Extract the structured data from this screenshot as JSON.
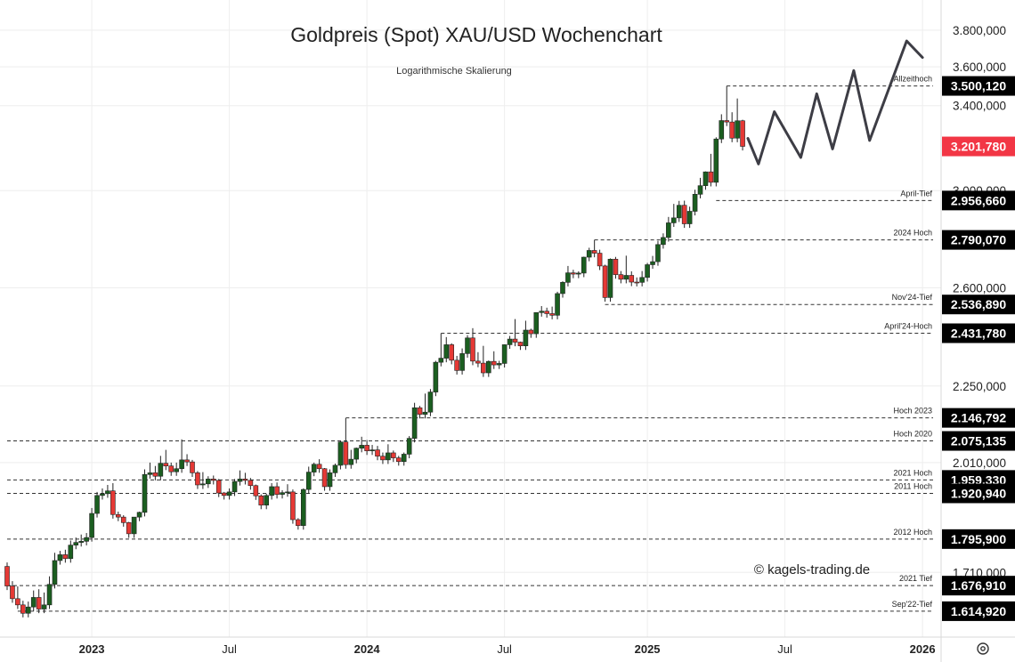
{
  "colors": {
    "up": "#1b5e20",
    "down": "#e53935",
    "badge_bg": "#000000",
    "last_bg": "#f23645",
    "grid": "#eeeeee",
    "projection": "#3d3d45"
  },
  "chart_data": {
    "type": "candlestick",
    "title": "Goldpreis (Spot) XAU/USD Wochenchart",
    "subtitle": "Logarithmische Skalierung",
    "scale": "log",
    "ylim": [
      1600,
      3900
    ],
    "x_start": "2022-09-12",
    "x_end": "2026-01-19",
    "y_ticks": [
      "3.800,000",
      "3.600,000",
      "3.400,000",
      "3.000,000",
      "2.600,000",
      "2.250,000",
      "2.010,000",
      "1.710,000"
    ],
    "x_ticks": [
      {
        "label": "2023",
        "date": "2023-01-02",
        "bold": true
      },
      {
        "label": "Jul",
        "date": "2023-07-03",
        "bold": false
      },
      {
        "label": "2024",
        "date": "2024-01-01",
        "bold": true
      },
      {
        "label": "Jul",
        "date": "2024-07-01",
        "bold": false
      },
      {
        "label": "2025",
        "date": "2025-01-06",
        "bold": true
      },
      {
        "label": "Jul",
        "date": "2025-07-07",
        "bold": false
      },
      {
        "label": "2026",
        "date": "2026-01-05",
        "bold": true
      }
    ],
    "levels": [
      {
        "name": "Allzeithoch",
        "value": 3500.12,
        "label": "3.500,120",
        "from": "2025-04-21"
      },
      {
        "name": "April-Tief",
        "value": 2956.66,
        "label": "2.956,660",
        "from": "2025-04-07"
      },
      {
        "name": "2024 Hoch",
        "value": 2790.07,
        "label": "2.790,070",
        "from": "2024-10-28"
      },
      {
        "name": "Nov'24-Tief",
        "value": 2536.89,
        "label": "2.536,890",
        "from": "2024-11-11"
      },
      {
        "name": "April'24-Hoch",
        "value": 2431.78,
        "label": "2.431,780",
        "from": "2024-04-08"
      },
      {
        "name": "Hoch 2023",
        "value": 2146.792,
        "label": "2.146,792",
        "from": "2023-12-04"
      },
      {
        "name": "Hoch 2020",
        "value": 2075.135,
        "label": "2.075,135",
        "from": "2022-09-12"
      },
      {
        "name": "2021 Hoch",
        "value": 1959.33,
        "label": "1.959,330",
        "from": "2022-09-12"
      },
      {
        "name": "2011 Hoch",
        "value": 1920.94,
        "label": "1.920,940",
        "from": "2022-09-12"
      },
      {
        "name": "2012 Hoch",
        "value": 1795.9,
        "label": "1.795,900",
        "from": "2022-09-12"
      },
      {
        "name": "2021 Tief",
        "value": 1676.91,
        "label": "1.676,910",
        "from": "2022-09-12"
      },
      {
        "name": "Sep'22-Tief",
        "value": 1614.92,
        "label": "1.614,920",
        "from": "2022-09-26"
      }
    ],
    "last_price": {
      "value": 3201.78,
      "label": "3.201,780"
    },
    "watermark": "© kagels-trading.de",
    "projection": [
      {
        "date": "2025-05-19",
        "value": 3240
      },
      {
        "date": "2025-06-02",
        "value": 3120
      },
      {
        "date": "2025-06-23",
        "value": 3370
      },
      {
        "date": "2025-07-28",
        "value": 3150
      },
      {
        "date": "2025-08-18",
        "value": 3460
      },
      {
        "date": "2025-09-08",
        "value": 3190
      },
      {
        "date": "2025-10-06",
        "value": 3580
      },
      {
        "date": "2025-10-27",
        "value": 3230
      },
      {
        "date": "2025-12-15",
        "value": 3740
      },
      {
        "date": "2026-01-05",
        "value": 3650
      }
    ],
    "candles": [
      {
        "d": "2022-09-12",
        "o": 1725,
        "h": 1735,
        "c": 1676
      },
      {
        "d": "2022-09-19",
        "o": 1676,
        "h": 1688,
        "c": 1645
      },
      {
        "d": "2022-09-26",
        "o": 1645,
        "h": 1675,
        "c": 1630
      },
      {
        "d": "2022-10-03",
        "o": 1630,
        "h": 1640,
        "c": 1610
      },
      {
        "d": "2022-10-10",
        "o": 1610,
        "h": 1638,
        "c": 1625
      },
      {
        "d": "2022-10-17",
        "o": 1625,
        "h": 1665,
        "c": 1648
      },
      {
        "d": "2022-10-24",
        "o": 1648,
        "h": 1668,
        "c": 1620
      },
      {
        "d": "2022-10-31",
        "o": 1620,
        "h": 1660,
        "c": 1630
      },
      {
        "d": "2022-11-07",
        "o": 1630,
        "h": 1700,
        "c": 1680
      },
      {
        "d": "2022-11-14",
        "o": 1680,
        "h": 1760,
        "c": 1740
      },
      {
        "d": "2022-11-21",
        "o": 1740,
        "h": 1765,
        "c": 1755
      },
      {
        "d": "2022-11-28",
        "o": 1755,
        "h": 1768,
        "c": 1745
      },
      {
        "d": "2022-12-05",
        "o": 1745,
        "h": 1792,
        "c": 1780
      },
      {
        "d": "2022-12-12",
        "o": 1780,
        "h": 1800,
        "c": 1787
      },
      {
        "d": "2022-12-19",
        "o": 1787,
        "h": 1808,
        "c": 1790
      },
      {
        "d": "2022-12-26",
        "o": 1790,
        "h": 1812,
        "c": 1800
      },
      {
        "d": "2023-01-02",
        "o": 1800,
        "h": 1880,
        "c": 1865
      },
      {
        "d": "2023-01-09",
        "o": 1865,
        "h": 1925,
        "c": 1915
      },
      {
        "d": "2023-01-16",
        "o": 1915,
        "h": 1935,
        "c": 1920
      },
      {
        "d": "2023-01-23",
        "o": 1920,
        "h": 1945,
        "c": 1928
      },
      {
        "d": "2023-01-30",
        "o": 1928,
        "h": 1950,
        "c": 1862
      },
      {
        "d": "2023-02-06",
        "o": 1862,
        "h": 1870,
        "c": 1855
      },
      {
        "d": "2023-02-13",
        "o": 1855,
        "h": 1860,
        "c": 1840
      },
      {
        "d": "2023-02-20",
        "o": 1840,
        "h": 1842,
        "c": 1810
      },
      {
        "d": "2023-02-27",
        "o": 1810,
        "h": 1855,
        "c": 1855
      },
      {
        "d": "2023-03-06",
        "o": 1855,
        "h": 1870,
        "c": 1868
      },
      {
        "d": "2023-03-13",
        "o": 1868,
        "h": 1990,
        "c": 1975
      },
      {
        "d": "2023-03-20",
        "o": 1975,
        "h": 2010,
        "c": 1980
      },
      {
        "d": "2023-03-27",
        "o": 1980,
        "h": 2000,
        "c": 1970
      },
      {
        "d": "2023-04-03",
        "o": 1970,
        "h": 2030,
        "c": 2008
      },
      {
        "d": "2023-04-10",
        "o": 2008,
        "h": 2048,
        "c": 2000
      },
      {
        "d": "2023-04-17",
        "o": 2000,
        "h": 2010,
        "c": 1983
      },
      {
        "d": "2023-04-24",
        "o": 1983,
        "h": 2010,
        "c": 1992
      },
      {
        "d": "2023-05-01",
        "o": 1992,
        "h": 2080,
        "c": 2018
      },
      {
        "d": "2023-05-08",
        "o": 2018,
        "h": 2035,
        "c": 2012
      },
      {
        "d": "2023-05-15",
        "o": 2012,
        "h": 2018,
        "c": 1980
      },
      {
        "d": "2023-05-22",
        "o": 1980,
        "h": 1985,
        "c": 1945
      },
      {
        "d": "2023-05-29",
        "o": 1945,
        "h": 1982,
        "c": 1948
      },
      {
        "d": "2023-06-05",
        "o": 1948,
        "h": 1970,
        "c": 1962
      },
      {
        "d": "2023-06-12",
        "o": 1962,
        "h": 1972,
        "c": 1958
      },
      {
        "d": "2023-06-19",
        "o": 1958,
        "h": 1962,
        "c": 1922
      },
      {
        "d": "2023-06-26",
        "o": 1922,
        "h": 1925,
        "c": 1915
      },
      {
        "d": "2023-07-03",
        "o": 1915,
        "h": 1935,
        "c": 1925
      },
      {
        "d": "2023-07-10",
        "o": 1925,
        "h": 1962,
        "c": 1955
      },
      {
        "d": "2023-07-17",
        "o": 1955,
        "h": 1987,
        "c": 1962
      },
      {
        "d": "2023-07-24",
        "o": 1962,
        "h": 1980,
        "c": 1958
      },
      {
        "d": "2023-07-31",
        "o": 1958,
        "h": 1965,
        "c": 1943
      },
      {
        "d": "2023-08-07",
        "o": 1943,
        "h": 1946,
        "c": 1914
      },
      {
        "d": "2023-08-14",
        "o": 1914,
        "h": 1918,
        "c": 1888
      },
      {
        "d": "2023-08-21",
        "o": 1888,
        "h": 1920,
        "c": 1915
      },
      {
        "d": "2023-08-28",
        "o": 1915,
        "h": 1950,
        "c": 1940
      },
      {
        "d": "2023-09-04",
        "o": 1940,
        "h": 1952,
        "c": 1918
      },
      {
        "d": "2023-09-11",
        "o": 1918,
        "h": 1930,
        "c": 1923
      },
      {
        "d": "2023-09-18",
        "o": 1923,
        "h": 1947,
        "c": 1925
      },
      {
        "d": "2023-09-25",
        "o": 1925,
        "h": 1932,
        "c": 1848
      },
      {
        "d": "2023-10-02",
        "o": 1848,
        "h": 1852,
        "c": 1832
      },
      {
        "d": "2023-10-09",
        "o": 1832,
        "h": 1935,
        "c": 1932
      },
      {
        "d": "2023-10-16",
        "o": 1932,
        "h": 1998,
        "c": 1982
      },
      {
        "d": "2023-10-23",
        "o": 1982,
        "h": 2010,
        "c": 2005
      },
      {
        "d": "2023-10-30",
        "o": 2005,
        "h": 2020,
        "c": 1992
      },
      {
        "d": "2023-11-06",
        "o": 1992,
        "h": 1994,
        "c": 1940
      },
      {
        "d": "2023-11-13",
        "o": 1940,
        "h": 1990,
        "c": 1980
      },
      {
        "d": "2023-11-20",
        "o": 1980,
        "h": 2007,
        "c": 2002
      },
      {
        "d": "2023-11-27",
        "o": 2002,
        "h": 2075,
        "c": 2072
      },
      {
        "d": "2023-12-04",
        "o": 2072,
        "h": 2146,
        "c": 2004
      },
      {
        "d": "2023-12-11",
        "o": 2004,
        "h": 2048,
        "c": 2020
      },
      {
        "d": "2023-12-18",
        "o": 2020,
        "h": 2055,
        "c": 2053
      },
      {
        "d": "2023-12-25",
        "o": 2053,
        "h": 2088,
        "c": 2062
      },
      {
        "d": "2024-01-01",
        "o": 2062,
        "h": 2078,
        "c": 2045
      },
      {
        "d": "2024-01-08",
        "o": 2045,
        "h": 2063,
        "c": 2048
      },
      {
        "d": "2024-01-15",
        "o": 2048,
        "h": 2060,
        "c": 2029
      },
      {
        "d": "2024-01-22",
        "o": 2029,
        "h": 2040,
        "c": 2018
      },
      {
        "d": "2024-01-29",
        "o": 2018,
        "h": 2065,
        "c": 2039
      },
      {
        "d": "2024-02-05",
        "o": 2039,
        "h": 2046,
        "c": 2024
      },
      {
        "d": "2024-02-12",
        "o": 2024,
        "h": 2030,
        "c": 2013
      },
      {
        "d": "2024-02-19",
        "o": 2013,
        "h": 2040,
        "c": 2035
      },
      {
        "d": "2024-02-26",
        "o": 2035,
        "h": 2090,
        "c": 2083
      },
      {
        "d": "2024-03-04",
        "o": 2083,
        "h": 2195,
        "c": 2179
      },
      {
        "d": "2024-03-11",
        "o": 2179,
        "h": 2185,
        "c": 2158
      },
      {
        "d": "2024-03-18",
        "o": 2158,
        "h": 2225,
        "c": 2165
      },
      {
        "d": "2024-03-25",
        "o": 2165,
        "h": 2240,
        "c": 2230
      },
      {
        "d": "2024-04-01",
        "o": 2230,
        "h": 2335,
        "c": 2330
      },
      {
        "d": "2024-04-08",
        "o": 2330,
        "h": 2431,
        "c": 2344
      },
      {
        "d": "2024-04-15",
        "o": 2344,
        "h": 2418,
        "c": 2391
      },
      {
        "d": "2024-04-22",
        "o": 2391,
        "h": 2396,
        "c": 2337
      },
      {
        "d": "2024-04-29",
        "o": 2337,
        "h": 2352,
        "c": 2302
      },
      {
        "d": "2024-05-06",
        "o": 2302,
        "h": 2378,
        "c": 2360
      },
      {
        "d": "2024-05-13",
        "o": 2360,
        "h": 2425,
        "c": 2415
      },
      {
        "d": "2024-05-20",
        "o": 2415,
        "h": 2450,
        "c": 2334
      },
      {
        "d": "2024-05-27",
        "o": 2334,
        "h": 2365,
        "c": 2327
      },
      {
        "d": "2024-06-03",
        "o": 2327,
        "h": 2387,
        "c": 2294
      },
      {
        "d": "2024-06-10",
        "o": 2294,
        "h": 2336,
        "c": 2333
      },
      {
        "d": "2024-06-17",
        "o": 2333,
        "h": 2368,
        "c": 2321
      },
      {
        "d": "2024-06-24",
        "o": 2321,
        "h": 2335,
        "c": 2326
      },
      {
        "d": "2024-07-01",
        "o": 2326,
        "h": 2392,
        "c": 2391
      },
      {
        "d": "2024-07-08",
        "o": 2391,
        "h": 2422,
        "c": 2411
      },
      {
        "d": "2024-07-15",
        "o": 2411,
        "h": 2483,
        "c": 2400
      },
      {
        "d": "2024-07-22",
        "o": 2400,
        "h": 2402,
        "c": 2387
      },
      {
        "d": "2024-07-29",
        "o": 2387,
        "h": 2477,
        "c": 2443
      },
      {
        "d": "2024-08-05",
        "o": 2443,
        "h": 2448,
        "c": 2430
      },
      {
        "d": "2024-08-12",
        "o": 2430,
        "h": 2508,
        "c": 2507
      },
      {
        "d": "2024-08-19",
        "o": 2507,
        "h": 2531,
        "c": 2512
      },
      {
        "d": "2024-08-26",
        "o": 2512,
        "h": 2525,
        "c": 2503
      },
      {
        "d": "2024-09-02",
        "o": 2503,
        "h": 2529,
        "c": 2497
      },
      {
        "d": "2024-09-09",
        "o": 2497,
        "h": 2585,
        "c": 2578
      },
      {
        "d": "2024-09-16",
        "o": 2578,
        "h": 2625,
        "c": 2621
      },
      {
        "d": "2024-09-23",
        "o": 2621,
        "h": 2685,
        "c": 2658
      },
      {
        "d": "2024-09-30",
        "o": 2658,
        "h": 2670,
        "c": 2653
      },
      {
        "d": "2024-10-07",
        "o": 2653,
        "h": 2664,
        "c": 2657
      },
      {
        "d": "2024-10-14",
        "o": 2657,
        "h": 2722,
        "c": 2720
      },
      {
        "d": "2024-10-21",
        "o": 2720,
        "h": 2758,
        "c": 2747
      },
      {
        "d": "2024-10-28",
        "o": 2747,
        "h": 2790,
        "c": 2736
      },
      {
        "d": "2024-11-04",
        "o": 2736,
        "h": 2750,
        "c": 2685
      },
      {
        "d": "2024-11-11",
        "o": 2685,
        "h": 2690,
        "c": 2563
      },
      {
        "d": "2024-11-18",
        "o": 2563,
        "h": 2715,
        "c": 2712
      },
      {
        "d": "2024-11-25",
        "o": 2712,
        "h": 2721,
        "c": 2651
      },
      {
        "d": "2024-12-02",
        "o": 2651,
        "h": 2665,
        "c": 2633
      },
      {
        "d": "2024-12-09",
        "o": 2633,
        "h": 2726,
        "c": 2648
      },
      {
        "d": "2024-12-16",
        "o": 2648,
        "h": 2664,
        "c": 2622
      },
      {
        "d": "2024-12-23",
        "o": 2622,
        "h": 2640,
        "c": 2621
      },
      {
        "d": "2024-12-30",
        "o": 2621,
        "h": 2665,
        "c": 2640
      },
      {
        "d": "2025-01-06",
        "o": 2640,
        "h": 2697,
        "c": 2690
      },
      {
        "d": "2025-01-13",
        "o": 2690,
        "h": 2725,
        "c": 2702
      },
      {
        "d": "2025-01-20",
        "o": 2702,
        "h": 2786,
        "c": 2771
      },
      {
        "d": "2025-01-27",
        "o": 2771,
        "h": 2817,
        "c": 2800
      },
      {
        "d": "2025-02-03",
        "o": 2800,
        "h": 2886,
        "c": 2861
      },
      {
        "d": "2025-02-10",
        "o": 2861,
        "h": 2942,
        "c": 2882
      },
      {
        "d": "2025-02-17",
        "o": 2882,
        "h": 2955,
        "c": 2936
      },
      {
        "d": "2025-02-24",
        "o": 2936,
        "h": 2956,
        "c": 2857
      },
      {
        "d": "2025-03-03",
        "o": 2857,
        "h": 2930,
        "c": 2910
      },
      {
        "d": "2025-03-10",
        "o": 2910,
        "h": 3004,
        "c": 2984
      },
      {
        "d": "2025-03-17",
        "o": 2984,
        "h": 3057,
        "c": 3022
      },
      {
        "d": "2025-03-24",
        "o": 3022,
        "h": 3086,
        "c": 3084
      },
      {
        "d": "2025-03-31",
        "o": 3084,
        "h": 3167,
        "c": 3037
      },
      {
        "d": "2025-04-07",
        "o": 3037,
        "h": 3245,
        "c": 3237
      },
      {
        "d": "2025-04-14",
        "o": 3237,
        "h": 3357,
        "c": 3326
      },
      {
        "d": "2025-04-21",
        "o": 3326,
        "h": 3500,
        "c": 3319
      },
      {
        "d": "2025-04-28",
        "o": 3319,
        "h": 3367,
        "c": 3241
      },
      {
        "d": "2025-05-05",
        "o": 3241,
        "h": 3436,
        "c": 3325
      },
      {
        "d": "2025-05-12",
        "o": 3325,
        "h": 3330,
        "c": 3202
      }
    ]
  }
}
